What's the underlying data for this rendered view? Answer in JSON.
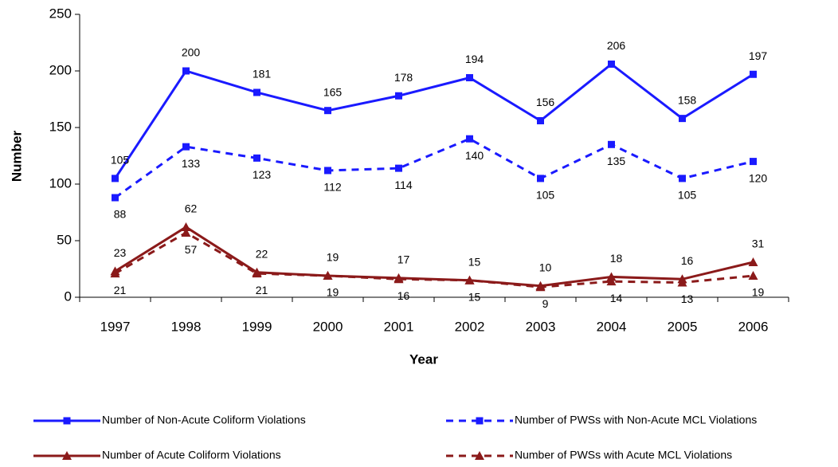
{
  "chart_data": {
    "type": "line",
    "x_label": "Year",
    "y_label": "Number",
    "categories": [
      "1997",
      "1998",
      "1999",
      "2000",
      "2001",
      "2002",
      "2003",
      "2004",
      "2005",
      "2006"
    ],
    "ylim": [
      0,
      250
    ],
    "yticks": [
      0,
      50,
      100,
      150,
      200,
      250
    ],
    "grid": false,
    "series": [
      {
        "name": "Number of Non-Acute Coliform Violations",
        "color": "#1a1aff",
        "dashed": false,
        "marker": "square",
        "values": [
          105,
          200,
          181,
          165,
          178,
          194,
          156,
          206,
          158,
          197
        ]
      },
      {
        "name": "Number of PWSs with Non-Acute MCL Violations",
        "color": "#1a1aff",
        "dashed": true,
        "marker": "square",
        "values": [
          88,
          133,
          123,
          112,
          114,
          140,
          105,
          135,
          105,
          120
        ]
      },
      {
        "name": "Number of Acute Coliform Violations",
        "color": "#8b1a1a",
        "dashed": false,
        "marker": "triangle",
        "values": [
          23,
          62,
          22,
          19,
          17,
          15,
          10,
          18,
          16,
          31
        ]
      },
      {
        "name": "Number of PWSs with Acute MCL Violations",
        "color": "#8b1a1a",
        "dashed": true,
        "marker": "triangle",
        "values": [
          21,
          57,
          21,
          19,
          16,
          15,
          9,
          14,
          13,
          19
        ]
      }
    ]
  }
}
